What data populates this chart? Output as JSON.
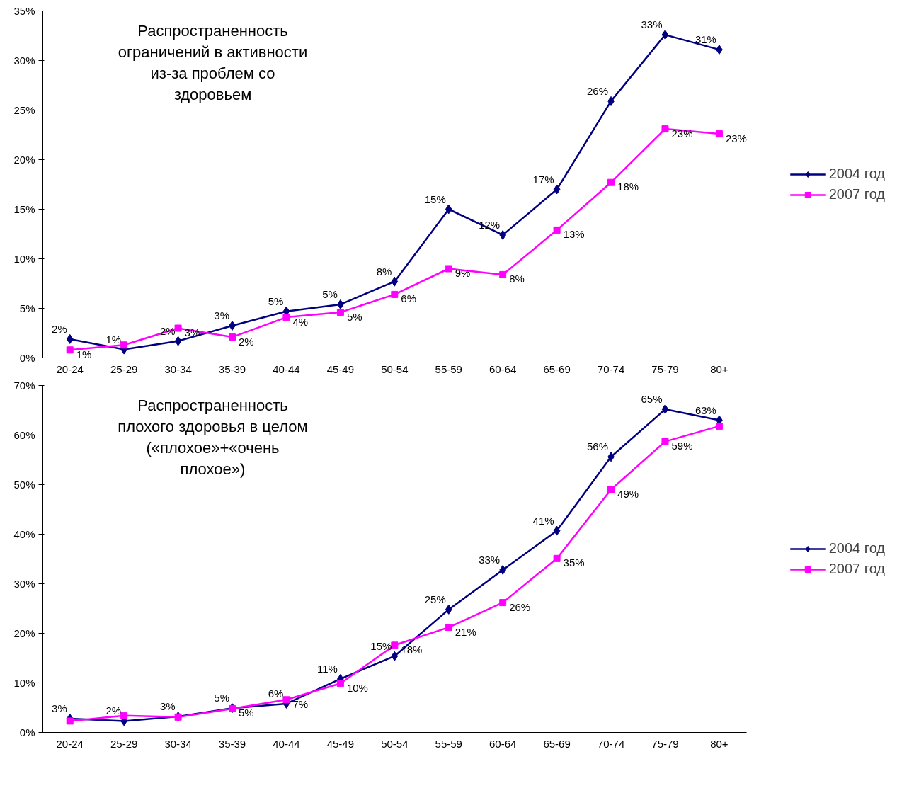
{
  "chart_data": [
    {
      "type": "line",
      "annotations": [
        "Распространенность\nограничений в активности\nиз-за проблем со\nздоровьем"
      ],
      "categories": [
        "20-24",
        "25-29",
        "30-34",
        "35-39",
        "40-44",
        "45-49",
        "50-54",
        "55-59",
        "60-64",
        "65-69",
        "70-74",
        "75-79",
        "80+"
      ],
      "ylim": [
        0,
        35
      ],
      "yticks": [
        {
          "value": 0,
          "label": "0%"
        },
        {
          "value": 5,
          "label": "5%"
        },
        {
          "value": 10,
          "label": "10%"
        },
        {
          "value": 15,
          "label": "15%"
        },
        {
          "value": 20,
          "label": "20%"
        },
        {
          "value": 25,
          "label": "25%"
        },
        {
          "value": 30,
          "label": "30%"
        },
        {
          "value": 35,
          "label": "35%"
        }
      ],
      "grid": false,
      "legend": "right",
      "series": [
        {
          "name": "2004 год",
          "color": "#000080",
          "marker": "diamond",
          "values": [
            1.9,
            0.85,
            1.7,
            3.25,
            4.7,
            5.4,
            7.7,
            15.0,
            12.4,
            17.0,
            25.9,
            32.6,
            31.1
          ],
          "value_labels": [
            "2%",
            "1%",
            "2%",
            "3%",
            "5%",
            "5%",
            "8%",
            "15%",
            "12%",
            "17%",
            "26%",
            "33%",
            "31%"
          ]
        },
        {
          "name": "2007 год",
          "color": "#ff00ff",
          "marker": "square",
          "values": [
            0.8,
            1.3,
            3.0,
            2.1,
            4.1,
            4.6,
            6.4,
            9.0,
            8.4,
            12.9,
            17.7,
            23.1,
            22.6
          ],
          "value_labels": [
            "1%",
            null,
            "3%",
            "2%",
            "4%",
            "5%",
            "6%",
            "9%",
            "8%",
            "13%",
            "18%",
            "23%",
            "23%"
          ]
        }
      ]
    },
    {
      "type": "line",
      "annotations": [
        "Распространенность\nплохого здоровья в целом\n(«плохое»+«очень\nплохое»)"
      ],
      "categories": [
        "20-24",
        "25-29",
        "30-34",
        "35-39",
        "40-44",
        "45-49",
        "50-54",
        "55-59",
        "60-64",
        "65-69",
        "70-74",
        "75-79",
        "80+"
      ],
      "ylim": [
        0,
        70
      ],
      "yticks": [
        {
          "value": 0,
          "label": "0%"
        },
        {
          "value": 10,
          "label": "10%"
        },
        {
          "value": 20,
          "label": "20%"
        },
        {
          "value": 30,
          "label": "30%"
        },
        {
          "value": 40,
          "label": "40%"
        },
        {
          "value": 50,
          "label": "50%"
        },
        {
          "value": 60,
          "label": "60%"
        },
        {
          "value": 70,
          "label": "70%"
        }
      ],
      "grid": false,
      "legend": "right",
      "series": [
        {
          "name": "2004 год",
          "color": "#000080",
          "marker": "diamond",
          "values": [
            2.8,
            2.3,
            3.2,
            4.9,
            5.8,
            10.8,
            15.4,
            24.8,
            32.8,
            40.7,
            55.6,
            65.2,
            63.0
          ],
          "value_labels": [
            "3%",
            "2%",
            "3%",
            "5%",
            "6%",
            "11%",
            "15%",
            "25%",
            "33%",
            "41%",
            "56%",
            "65%",
            "63%"
          ]
        },
        {
          "name": "2007 год",
          "color": "#ff00ff",
          "marker": "square",
          "values": [
            2.3,
            3.4,
            3.1,
            4.8,
            6.6,
            9.9,
            17.6,
            21.2,
            26.2,
            35.1,
            49.0,
            58.7,
            61.8
          ],
          "value_labels": [
            null,
            null,
            null,
            "5%",
            "7%",
            "10%",
            "18%",
            "21%",
            "26%",
            "35%",
            "49%",
            "59%",
            null
          ]
        }
      ]
    }
  ]
}
